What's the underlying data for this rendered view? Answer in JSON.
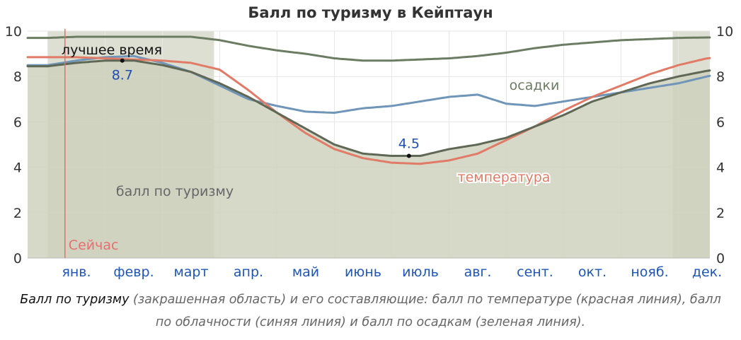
{
  "title": "Балл по туризму в Кейптаун",
  "caption": {
    "lead": "Балл по туризму",
    "text": " (закрашенная область) и его составляющие: балл по температуре (красная линия), балл по облачности (синяя линия) и балл по осадкам (зеленая линия)."
  },
  "labels": {
    "best_time": "лучшее время",
    "now": "Сейчас",
    "tourism": "балл по туризму",
    "precip": "осадки",
    "temperature": "температура"
  },
  "colors": {
    "temperature": "#e07b67",
    "clouds": "#6f95b8",
    "precip": "#6b7c62",
    "tourism_line": "#5f6855",
    "tourism_fill": "#cfd1be",
    "best_band": "#dddfd2",
    "now_line": "#e56f6f",
    "month_label": "#1f55b4",
    "annotation": "#1f4fb3"
  },
  "chart_data": {
    "type": "area",
    "x_unit": "month (fraction of year)",
    "categories": [
      "янв.",
      "февр.",
      "март",
      "апр.",
      "май",
      "июнь",
      "июль",
      "авг.",
      "сент.",
      "окт.",
      "нояб.",
      "дек."
    ],
    "yticks": [
      0,
      2,
      4,
      6,
      8,
      10
    ],
    "ylim": [
      0,
      10
    ],
    "xlim": [
      0,
      12
    ],
    "grid": true,
    "now_x": 0.3,
    "best_time_ranges": [
      [
        0,
        2.9
      ],
      [
        10.9,
        12
      ]
    ],
    "annotations": [
      {
        "x": 1.3,
        "y": 8.7,
        "label": "8.7"
      },
      {
        "x": 6.3,
        "y": 4.5,
        "label": "4.5"
      }
    ],
    "series": [
      {
        "key": "tourism",
        "name": "балл по туризму",
        "x": [
          0,
          0.5,
          1,
          1.5,
          2,
          2.5,
          3,
          3.5,
          4,
          4.5,
          5,
          5.5,
          6,
          6.5,
          7,
          7.5,
          8,
          8.5,
          9,
          9.5,
          10,
          10.5,
          11,
          11.5,
          12
        ],
        "values": [
          8.45,
          8.6,
          8.7,
          8.7,
          8.5,
          8.2,
          7.7,
          7.1,
          6.4,
          5.7,
          5.0,
          4.6,
          4.5,
          4.5,
          4.8,
          5.0,
          5.3,
          5.8,
          6.3,
          6.9,
          7.3,
          7.7,
          8.0,
          8.25,
          8.4
        ]
      },
      {
        "key": "temperature",
        "name": "температура",
        "x": [
          0,
          0.5,
          1,
          1.5,
          2,
          2.5,
          3,
          3.5,
          4,
          4.5,
          5,
          5.5,
          6,
          6.5,
          7,
          7.5,
          8,
          8.5,
          9,
          9.5,
          10,
          10.5,
          11,
          11.5,
          12
        ],
        "values": [
          8.85,
          8.85,
          8.8,
          8.75,
          8.7,
          8.6,
          8.3,
          7.4,
          6.4,
          5.5,
          4.8,
          4.4,
          4.2,
          4.15,
          4.3,
          4.6,
          5.2,
          5.8,
          6.5,
          7.1,
          7.6,
          8.1,
          8.5,
          8.8,
          8.9
        ]
      },
      {
        "key": "clouds",
        "name": "облачность",
        "x": [
          0,
          0.5,
          1,
          1.5,
          2,
          2.5,
          3,
          3.5,
          4,
          4.5,
          5,
          5.5,
          6,
          6.5,
          7,
          7.5,
          8,
          8.5,
          9,
          9.5,
          10,
          10.5,
          11,
          11.5,
          12
        ],
        "values": [
          8.5,
          8.7,
          8.85,
          8.9,
          8.6,
          8.2,
          7.6,
          7.0,
          6.7,
          6.45,
          6.4,
          6.6,
          6.7,
          6.9,
          7.1,
          7.2,
          6.8,
          6.7,
          6.9,
          7.1,
          7.3,
          7.5,
          7.7,
          8.0,
          8.3
        ]
      },
      {
        "key": "precip",
        "name": "осадки",
        "x": [
          0,
          0.5,
          1,
          1.5,
          2,
          2.5,
          3,
          3.5,
          4,
          4.5,
          5,
          5.5,
          6,
          6.5,
          7,
          7.5,
          8,
          8.5,
          9,
          9.5,
          10,
          10.5,
          11,
          11.5,
          12
        ],
        "values": [
          9.7,
          9.75,
          9.75,
          9.75,
          9.75,
          9.75,
          9.6,
          9.35,
          9.15,
          9.0,
          8.8,
          8.7,
          8.7,
          8.75,
          8.8,
          8.9,
          9.05,
          9.25,
          9.4,
          9.5,
          9.6,
          9.65,
          9.7,
          9.72,
          9.7
        ]
      }
    ]
  }
}
